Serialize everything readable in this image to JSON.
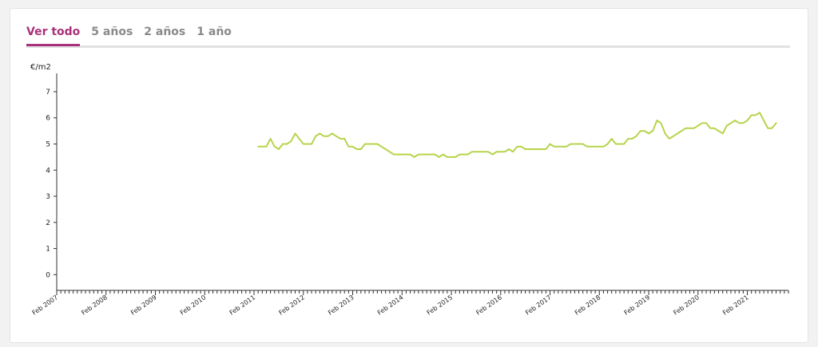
{
  "tabs": [
    {
      "label": "Ver todo",
      "active": true
    },
    {
      "label": "5 años",
      "active": false
    },
    {
      "label": "2 años",
      "active": false
    },
    {
      "label": "1 año",
      "active": false
    }
  ],
  "colors": {
    "accent": "#a8327a",
    "line": "#b6d44a",
    "tab_inactive": "#8a8a8a"
  },
  "chart_data": {
    "type": "line",
    "ylabel": "€/m2",
    "ylim": [
      -0.6,
      7.7
    ],
    "yticks": [
      0,
      1,
      2,
      3,
      4,
      5,
      6,
      7
    ],
    "xlabels": [
      "Feb 2007",
      "Feb 2008",
      "Feb 2009",
      "Feb 2010",
      "Feb 2011",
      "Feb 2012",
      "Feb 2013",
      "Feb 2014",
      "Feb 2015",
      "Feb 2016",
      "Feb 2017",
      "Feb 2018",
      "Feb 2019",
      "Feb 2020",
      "Feb 2021"
    ],
    "x_start": "2007-02",
    "x_end": "2021-12",
    "grid": false,
    "series": [
      {
        "start": "2011-03",
        "values": [
          4.9,
          4.9,
          4.9,
          5.2,
          4.9,
          4.8,
          5.0,
          5.0,
          5.1,
          5.4,
          5.2,
          5.0,
          5.0,
          5.0,
          5.3,
          5.4,
          5.3,
          5.3,
          5.4,
          5.3,
          5.2,
          5.2,
          4.9,
          4.9,
          4.8,
          4.8,
          5.0,
          5.0,
          5.0,
          5.0,
          4.9,
          4.8,
          4.7,
          4.6,
          4.6,
          4.6,
          4.6,
          4.6,
          4.5,
          4.6,
          4.6,
          4.6,
          4.6,
          4.6,
          4.5,
          4.6,
          4.5,
          4.5,
          4.5,
          4.6,
          4.6,
          4.6,
          4.7,
          4.7,
          4.7,
          4.7,
          4.7,
          4.6,
          4.7,
          4.7,
          4.7,
          4.8,
          4.7,
          4.9,
          4.9,
          4.8,
          4.8,
          4.8,
          4.8,
          4.8,
          4.8,
          5.0,
          4.9,
          4.9,
          4.9,
          4.9,
          5.0,
          5.0,
          5.0,
          5.0,
          4.9,
          4.9,
          4.9,
          4.9,
          4.9,
          5.0,
          5.2,
          5.0,
          5.0,
          5.0,
          5.2,
          5.2,
          5.3,
          5.5,
          5.5,
          5.4,
          5.5,
          5.9,
          5.8,
          5.4,
          5.2,
          5.3,
          5.4,
          5.5,
          5.6,
          5.6,
          5.6,
          5.7,
          5.8,
          5.8,
          5.6,
          5.6,
          5.5,
          5.4,
          5.7,
          5.8,
          5.9,
          5.8,
          5.8,
          5.9,
          6.1,
          6.1,
          6.2,
          5.9,
          5.6,
          5.6,
          5.8
        ]
      }
    ]
  }
}
